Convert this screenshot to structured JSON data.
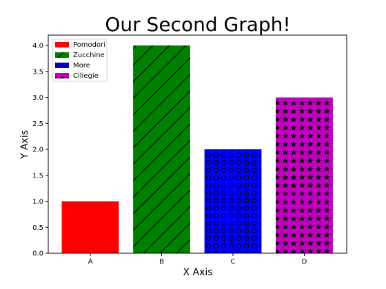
{
  "chart_data": {
    "type": "bar",
    "title": "Our Second Graph!",
    "xlabel": "X Axis",
    "ylabel": "Y Axis",
    "categories": [
      "A",
      "B",
      "C",
      "D"
    ],
    "values": [
      1,
      4,
      2,
      3
    ],
    "series_legend": [
      "Pomodori",
      "Zucchine",
      "More",
      "Ciliegie"
    ],
    "colors": [
      "#ff0000",
      "#008000",
      "#0000ff",
      "#bf00bf"
    ],
    "hatches": [
      "none",
      "diagonal",
      "circles",
      "stars"
    ],
    "ylim": [
      0,
      4.2
    ],
    "yticks": [
      "0.0",
      "0.5",
      "1.0",
      "1.5",
      "2.0",
      "2.5",
      "3.0",
      "3.5",
      "4.0"
    ],
    "grid": false,
    "legend_position": "top-left"
  }
}
